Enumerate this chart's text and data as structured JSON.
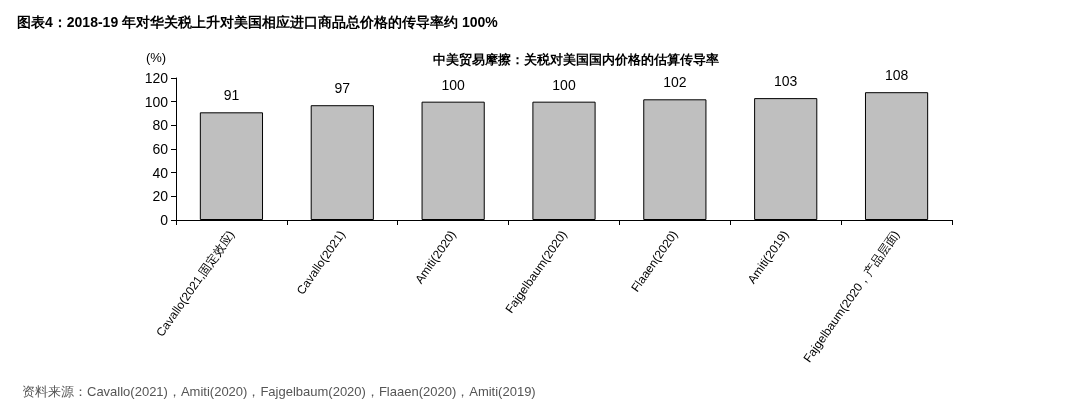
{
  "chart_data": {
    "type": "bar",
    "title": "图表4：2018-19 年对华关税上升对美国相应进口商品总价格的传导率约 100%",
    "subtitle": "中美贸易摩擦：关税对美国国内价格的估算传导率",
    "ylabel": "(%)",
    "categories": [
      "Cavallo(2021,固定效应)",
      "Cavallo(2021)",
      "Amiti(2020)",
      "Fajgelbaum(2020)",
      "Flaaen(2020)",
      "Amiti(2019)",
      "Fajgelbaum(2020，产品层面)"
    ],
    "values": [
      91,
      97,
      100,
      100,
      102,
      103,
      108
    ],
    "color": "#bfbfbf",
    "ylim": [
      0,
      120
    ],
    "yticks": [
      0,
      20,
      40,
      60,
      80,
      100,
      120
    ],
    "grid": false,
    "data_labels": true,
    "annotations": [
      "资料来源：Cavallo(2021)，Amiti(2020)，Fajgelbaum(2020)，Flaaen(2020)，Amiti(2019)"
    ]
  }
}
